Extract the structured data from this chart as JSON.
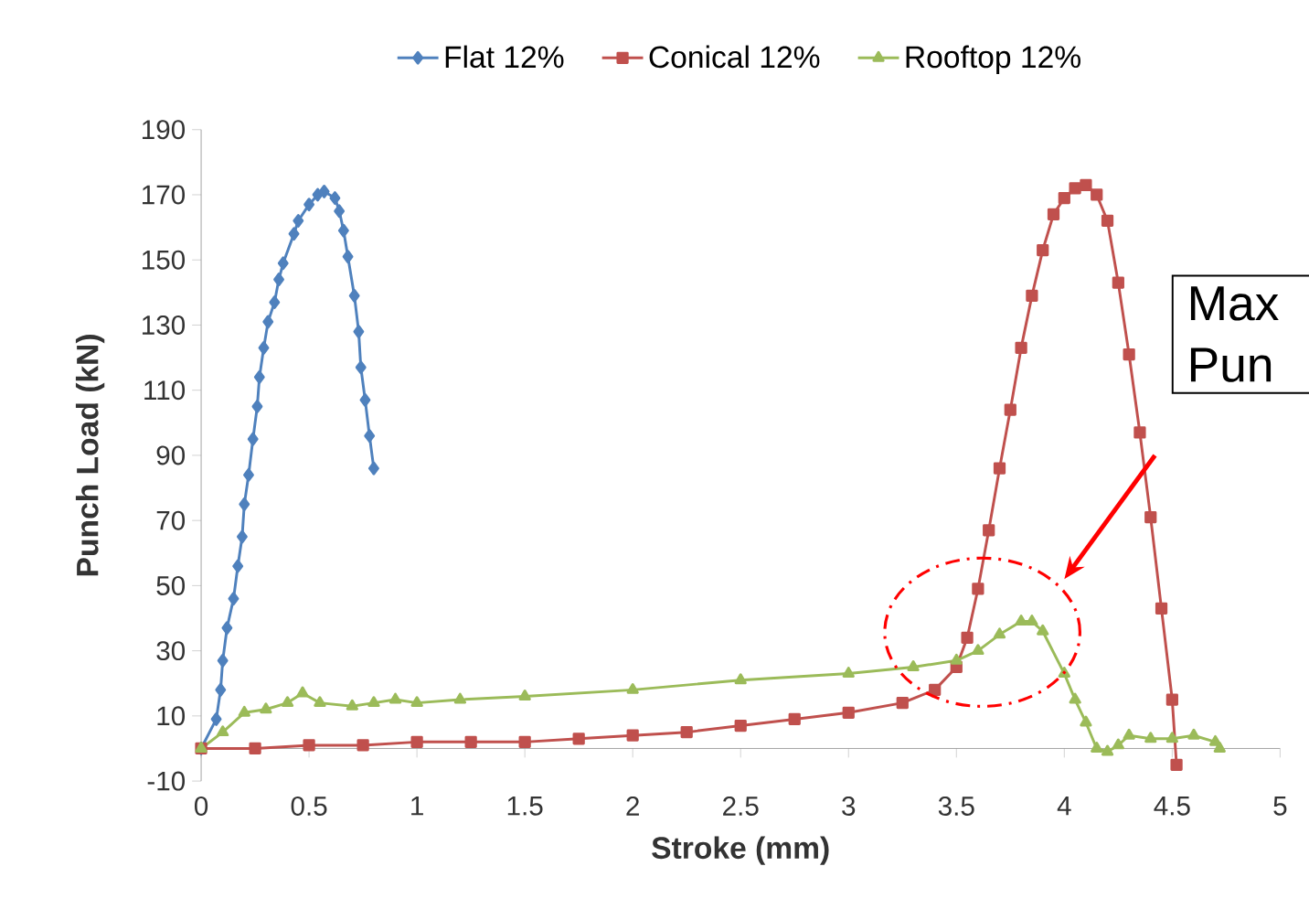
{
  "chart_data": {
    "type": "line",
    "xlabel": "Stroke (mm)",
    "ylabel": "Punch Load (kN)",
    "xlim": [
      0,
      5
    ],
    "ylim": [
      -10,
      190
    ],
    "xticks": [
      0,
      0.5,
      1,
      1.5,
      2,
      2.5,
      3,
      3.5,
      4,
      4.5,
      5
    ],
    "yticks": [
      -10,
      10,
      30,
      50,
      70,
      90,
      110,
      130,
      150,
      170,
      190
    ],
    "legend": "top",
    "line_style": "solid",
    "annotations": [
      "Max",
      "Pun"
    ],
    "series": [
      {
        "name": "Flat 12%",
        "color": "#4f81bd",
        "marker": "diamond",
        "x": [
          0,
          0.07,
          0.09,
          0.1,
          0.12,
          0.15,
          0.17,
          0.19,
          0.2,
          0.22,
          0.24,
          0.26,
          0.27,
          0.29,
          0.31,
          0.34,
          0.36,
          0.38,
          0.43,
          0.45,
          0.5,
          0.54,
          0.57,
          0.62,
          0.64,
          0.66,
          0.68,
          0.71,
          0.73,
          0.74,
          0.76,
          0.78,
          0.8
        ],
        "values": [
          0,
          9,
          18,
          27,
          37,
          46,
          56,
          65,
          75,
          84,
          95,
          105,
          114,
          123,
          131,
          137,
          144,
          149,
          158,
          162,
          167,
          170,
          171,
          169,
          165,
          159,
          151,
          139,
          128,
          117,
          107,
          96,
          86
        ]
      },
      {
        "name": "Conical 12%",
        "color": "#c0504d",
        "marker": "square",
        "x": [
          0,
          0.25,
          0.5,
          0.75,
          1,
          1.25,
          1.5,
          1.75,
          2,
          2.25,
          2.5,
          2.75,
          3,
          3.25,
          3.4,
          3.5,
          3.55,
          3.6,
          3.65,
          3.7,
          3.75,
          3.8,
          3.85,
          3.9,
          3.95,
          4,
          4.05,
          4.1,
          4.15,
          4.2,
          4.25,
          4.3,
          4.35,
          4.4,
          4.45,
          4.5,
          4.52
        ],
        "values": [
          0,
          0,
          1,
          1,
          2,
          2,
          2,
          3,
          4,
          5,
          7,
          9,
          11,
          14,
          18,
          25,
          34,
          49,
          67,
          86,
          104,
          123,
          139,
          153,
          164,
          169,
          172,
          173,
          170,
          162,
          143,
          121,
          97,
          71,
          43,
          15,
          -5
        ]
      },
      {
        "name": "Rooftop 12%",
        "color": "#9bbb59",
        "marker": "triangle",
        "x": [
          0,
          0.1,
          0.2,
          0.3,
          0.4,
          0.47,
          0.55,
          0.7,
          0.8,
          0.9,
          1,
          1.2,
          1.5,
          2,
          2.5,
          3,
          3.3,
          3.5,
          3.6,
          3.7,
          3.8,
          3.85,
          3.9,
          4,
          4.05,
          4.1,
          4.15,
          4.2,
          4.25,
          4.3,
          4.4,
          4.5,
          4.6,
          4.7,
          4.72
        ],
        "values": [
          0,
          5,
          11,
          12,
          14,
          17,
          14,
          13,
          14,
          15,
          14,
          15,
          16,
          18,
          21,
          23,
          25,
          27,
          30,
          35,
          39,
          39,
          36,
          23,
          15,
          8,
          0,
          -1,
          1,
          4,
          3,
          3,
          4,
          2,
          0
        ]
      }
    ]
  }
}
